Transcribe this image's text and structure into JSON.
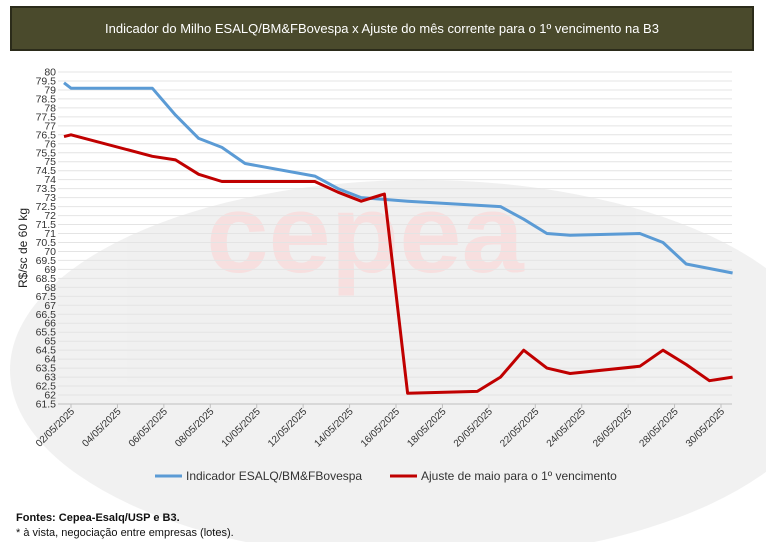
{
  "title": "Indicador do Milho ESALQ/BM&FBovespa x Ajuste do mês corrente para o 1º vencimento na B3",
  "watermark": "cepea",
  "chart_data": {
    "type": "line",
    "ylabel": "R$/sc de 60 kg",
    "ylim": [
      61.5,
      80
    ],
    "ytick_step": 0.5,
    "x_tick_labels": [
      "02/05/2025",
      "04/05/2025",
      "06/05/2025",
      "08/05/2025",
      "10/05/2025",
      "12/05/2025",
      "14/05/2025",
      "16/05/2025",
      "18/05/2025",
      "20/05/2025",
      "22/05/2025",
      "24/05/2025",
      "26/05/2025",
      "28/05/2025",
      "30/05/2025"
    ],
    "x_start_day": 2,
    "x_end_day": 30,
    "series": [
      {
        "name": "Indicador ESALQ/BM&FBovespa",
        "color": "#5b9bd5",
        "x": [
          1.7,
          2,
          5.5,
          6.5,
          7.5,
          8.5,
          9.5,
          12.5,
          13.5,
          14.5,
          16.5,
          20.5,
          21.5,
          22.5,
          23.5,
          26.5,
          27.5,
          28.5,
          30.5
        ],
        "y": [
          79.4,
          79.1,
          79.1,
          77.6,
          76.3,
          75.8,
          74.9,
          74.2,
          73.5,
          73.0,
          72.8,
          72.5,
          71.8,
          71.0,
          70.9,
          71.0,
          70.5,
          69.3,
          68.8
        ]
      },
      {
        "name": "Ajuste de maio para o 1º vencimento",
        "color": "#c00000",
        "x": [
          1.7,
          2,
          5.5,
          6.5,
          7.5,
          8.5,
          12.5,
          13.5,
          14.5,
          15.5,
          16.5,
          19.5,
          20.5,
          21.5,
          22.5,
          23.5,
          26.5,
          27.5,
          28.5,
          29.5,
          30.5
        ],
        "y": [
          76.4,
          76.5,
          75.3,
          75.1,
          74.3,
          73.9,
          73.9,
          73.3,
          72.8,
          73.2,
          62.1,
          62.2,
          63.0,
          64.5,
          63.5,
          63.2,
          63.6,
          64.5,
          63.7,
          62.8,
          63.0
        ]
      }
    ],
    "grid": "horizontal",
    "legend": "bottom"
  },
  "footer": {
    "sources": "Fontes: Cepea-Esalq/USP e B3.",
    "note": "* à vista, negociação entre empresas (lotes)."
  }
}
